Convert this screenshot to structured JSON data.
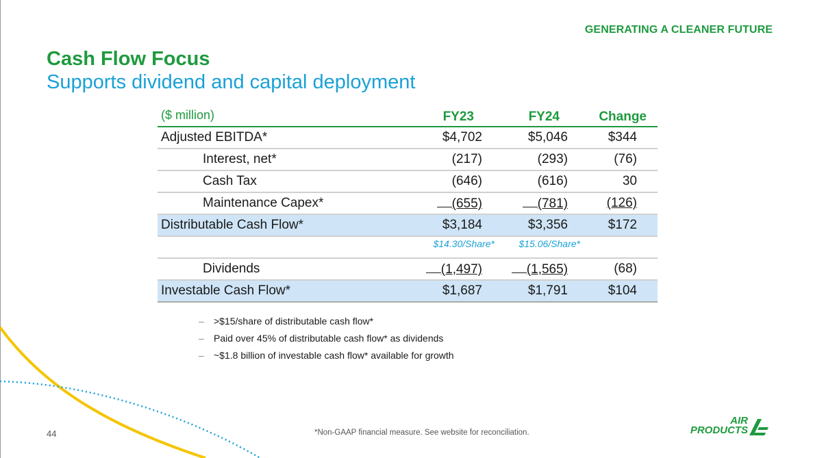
{
  "header": {
    "tagline": "GENERATING A CLEANER FUTURE",
    "title": "Cash Flow Focus",
    "subtitle": "Supports dividend and capital deployment"
  },
  "table": {
    "unit": "($ million)",
    "columns": [
      "FY23",
      "FY24",
      "Change"
    ],
    "rows": [
      {
        "label": "Adjusted EBITDA*",
        "fy23": "$4,702",
        "fy24": "$5,046",
        "change": "$344"
      },
      {
        "label": "Interest, net*",
        "fy23": "(217)",
        "fy24": "(293)",
        "change": "(76)"
      },
      {
        "label": "Cash Tax",
        "fy23": "(646)",
        "fy24": "(616)",
        "change": "30"
      },
      {
        "label": "Maintenance Capex*",
        "fy23": "(655)",
        "fy24": "(781)",
        "change": "(126)"
      },
      {
        "label": "Distributable Cash Flow*",
        "fy23": "$3,184",
        "fy24": "$3,356",
        "change": "$172"
      },
      {
        "fy23_share": "$14.30/Share*",
        "fy24_share": "$15.06/Share*"
      },
      {
        "label": "Dividends",
        "fy23": "(1,497)",
        "fy24": "(1,565)",
        "change": "(68)"
      },
      {
        "label": "Investable Cash Flow*",
        "fy23": "$1,687",
        "fy24": "$1,791",
        "change": "$104"
      }
    ]
  },
  "bullets": [
    "–",
    ">$15/share of distributable cash flow*",
    "Paid over 45% of distributable cash flow* as dividends",
    "~$1.8 billion of investable cash flow* available for growth"
  ],
  "footer": {
    "page_number": "44",
    "footnote": "*Non-GAAP financial measure.  See website for reconciliation.",
    "logo_line1": "AIR",
    "logo_line2": "PRODUCTS"
  },
  "colors": {
    "green": "#1e9a3e",
    "blue": "#1aa1d6",
    "highlight": "#cfe5f7",
    "yellow": "#f5c400"
  }
}
